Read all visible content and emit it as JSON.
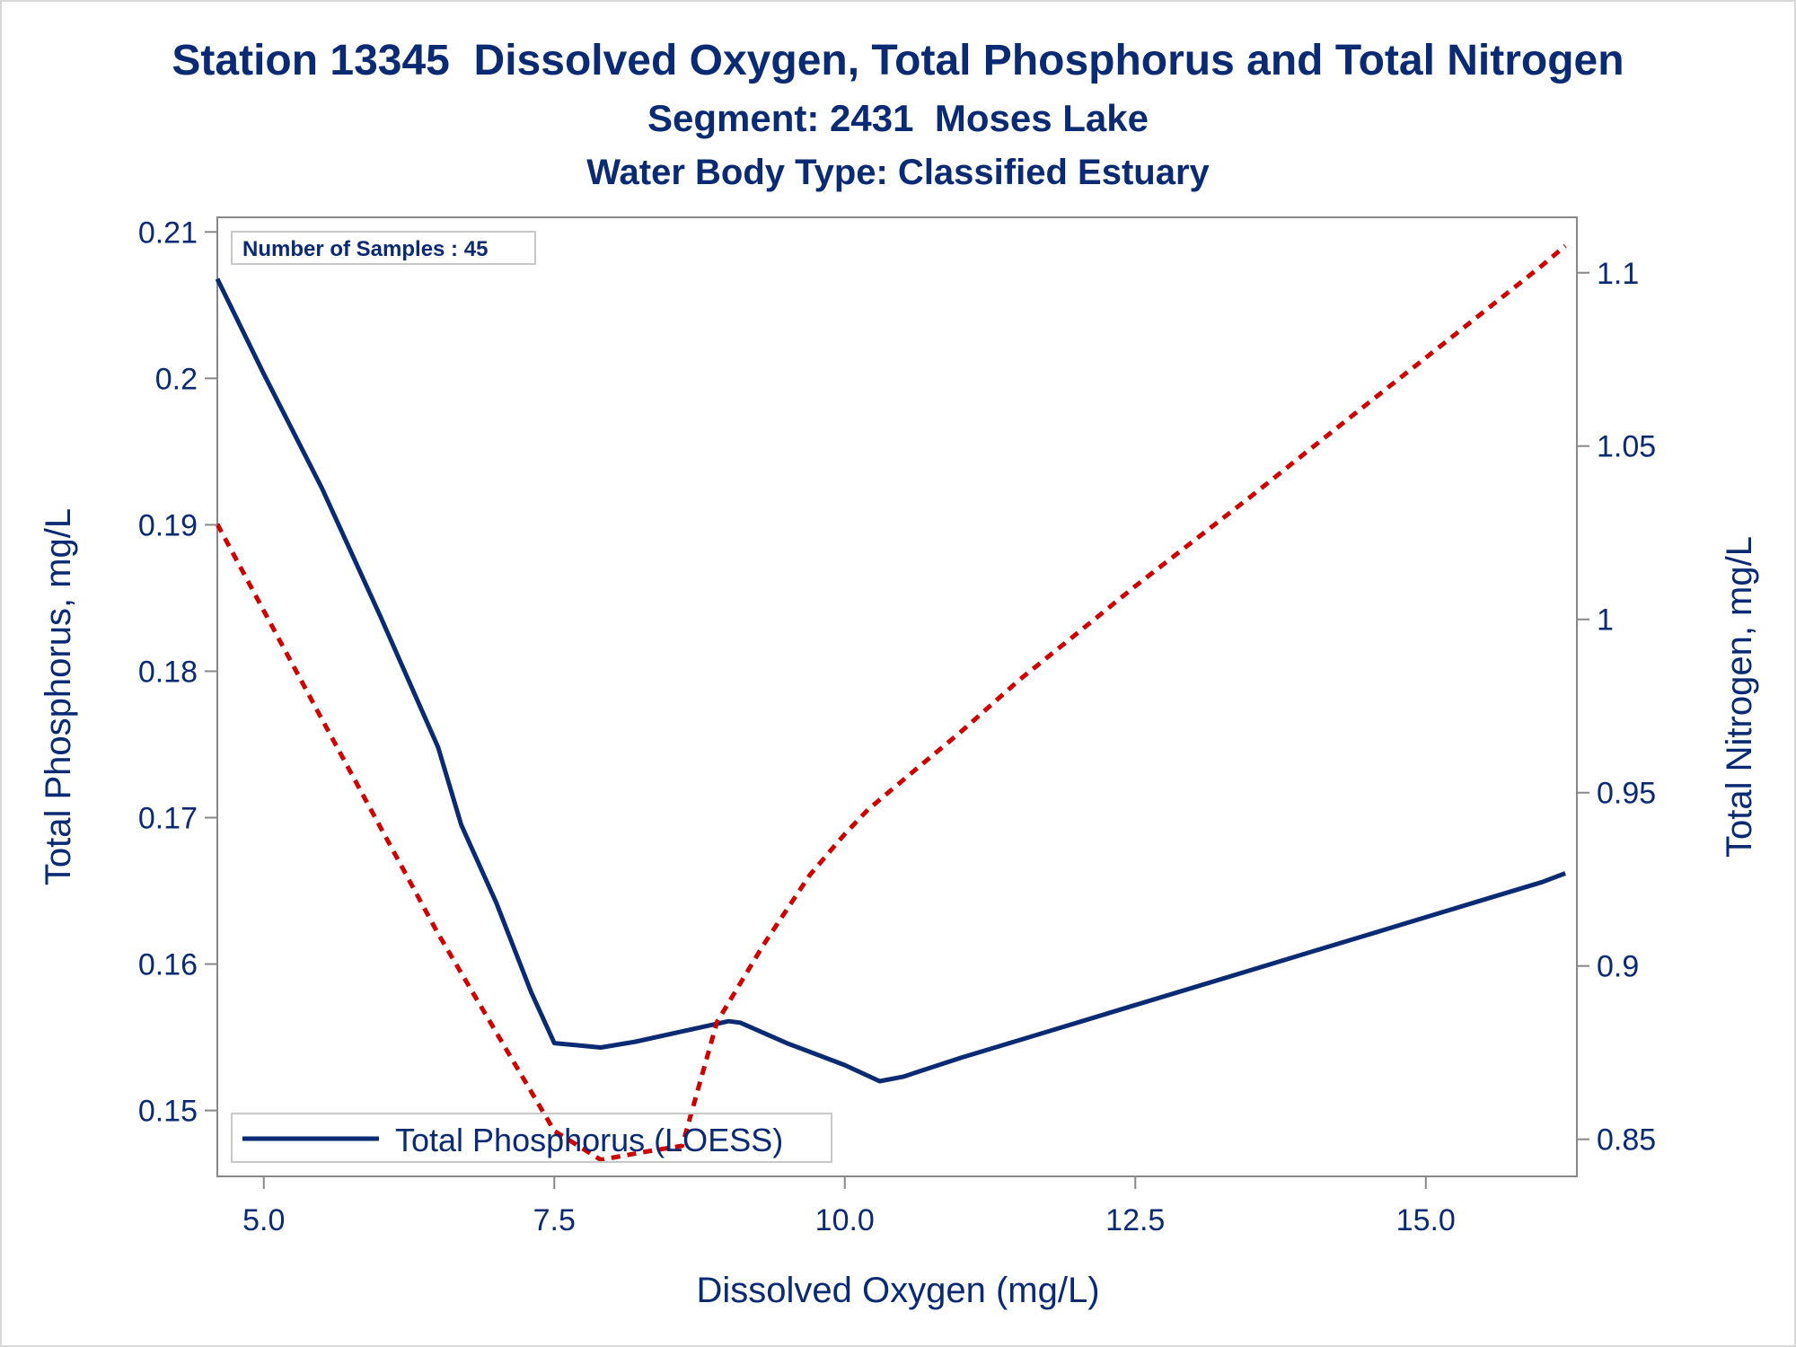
{
  "titles": {
    "line1": "Station 13345  Dissolved Oxygen, Total Phosphorus and Total Nitrogen",
    "line2": "Segment: 2431  Moses Lake",
    "line3": "Water Body Type: Classified Estuary"
  },
  "colors": {
    "text": "#0b2a74",
    "phosphorus_line": "#0b2a74",
    "nitrogen_line": "#cc0000",
    "axis": "#888888"
  },
  "chart_data": {
    "type": "line",
    "xlabel": "Dissolved Oxygen (mg/L)",
    "ylabel": "Total Phosphorus, mg/L",
    "y2label": "Total Nitrogen, mg/L",
    "xlim": [
      4.6,
      16.3
    ],
    "ylim": [
      0.1455,
      0.211
    ],
    "y2lim": [
      0.8393,
      1.116
    ],
    "xticks": [
      5.0,
      7.5,
      10.0,
      12.5,
      15.0
    ],
    "xtick_labels": [
      "5.0",
      "7.5",
      "10.0",
      "12.5",
      "15.0"
    ],
    "yticks": [
      0.15,
      0.16,
      0.17,
      0.18,
      0.19,
      0.2,
      0.21
    ],
    "ytick_labels": [
      "0.15",
      "0.16",
      "0.17",
      "0.18",
      "0.19",
      "0.2",
      "0.21"
    ],
    "y2ticks": [
      0.85,
      0.9,
      0.95,
      1.0,
      1.05,
      1.1
    ],
    "y2tick_labels": [
      "0.85",
      "0.9",
      "0.95",
      "1",
      "1.05",
      "1.1"
    ],
    "grid": false,
    "annotation": "Number of Samples : 45",
    "legend": {
      "placement": "bottom-left",
      "entries": [
        "Total Phosphorus (LOESS)"
      ]
    },
    "series": [
      {
        "name": "Total Phosphorus (LOESS)",
        "axis": "left",
        "style": "solid",
        "x": [
          4.6,
          5.0,
          5.5,
          6.0,
          6.5,
          6.7,
          7.0,
          7.3,
          7.5,
          7.9,
          8.2,
          8.6,
          9.0,
          9.1,
          9.3,
          9.5,
          10.0,
          10.3,
          10.5,
          11.0,
          11.5,
          12.0,
          12.5,
          13.0,
          13.5,
          14.0,
          14.5,
          15.0,
          15.5,
          16.0,
          16.2
        ],
        "y": [
          0.2068,
          0.2003,
          0.1925,
          0.1838,
          0.1748,
          0.1695,
          0.1642,
          0.1581,
          0.1546,
          0.1543,
          0.1547,
          0.1554,
          0.1561,
          0.156,
          0.1553,
          0.1546,
          0.1531,
          0.152,
          0.1523,
          0.1536,
          0.1548,
          0.156,
          0.1572,
          0.1584,
          0.1596,
          0.1608,
          0.162,
          0.1632,
          0.1644,
          0.1656,
          0.1662
        ]
      },
      {
        "name": "",
        "axis": "right",
        "style": "dashed",
        "x": [
          4.6,
          5.5,
          6.5,
          7.5,
          7.9,
          8.3,
          8.6,
          8.9,
          9.3,
          9.7,
          10.0,
          10.2,
          10.6,
          11.0,
          11.5,
          12.0,
          12.5,
          13.0,
          13.5,
          14.0,
          14.5,
          15.0,
          15.5,
          16.0,
          16.2
        ],
        "y": [
          1.0275,
          0.9712,
          0.9093,
          0.8524,
          0.8441,
          0.8465,
          0.8481,
          0.8838,
          0.9061,
          0.9263,
          0.9381,
          0.9451,
          0.9564,
          0.9676,
          0.9825,
          0.996,
          1.0096,
          1.0226,
          1.0356,
          1.049,
          1.0623,
          1.0755,
          1.0888,
          1.1021,
          1.1078
        ]
      }
    ]
  }
}
